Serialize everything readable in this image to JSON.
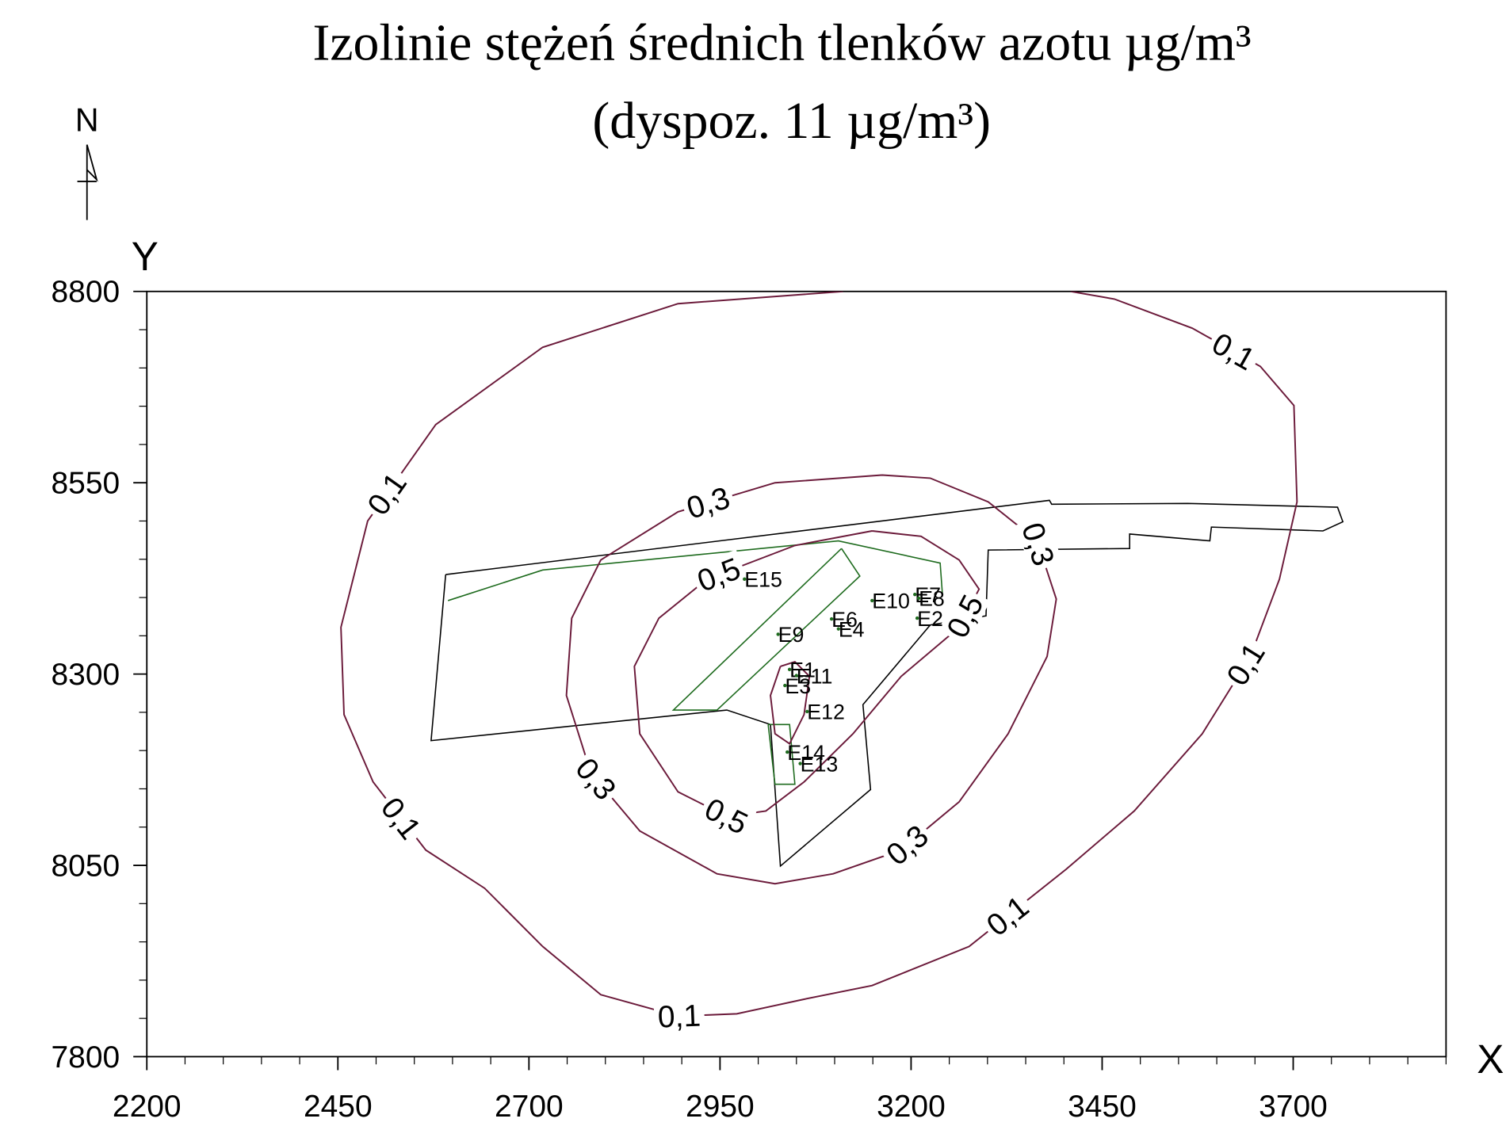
{
  "chart_data": {
    "type": "contour",
    "title": "Izolinie stężeń średnich tlenków azotu µg/m³",
    "subtitle": "(dyspoz. 11 µg/m³)",
    "xlabel": "X",
    "ylabel": "Y",
    "north": "N",
    "xlim": [
      2200,
      3900
    ],
    "ylim": [
      7800,
      8800
    ],
    "xticks": [
      2200,
      2450,
      2700,
      2950,
      3200,
      3450,
      3700
    ],
    "yticks": [
      7800,
      8050,
      8300,
      8550,
      8800
    ],
    "xminorticks": [
      2250,
      2300,
      2350,
      2400,
      2500,
      2550,
      2600,
      2650,
      2750,
      2800,
      2850,
      2900,
      3000,
      3050,
      3100,
      3150,
      3250,
      3300,
      3350,
      3400,
      3500,
      3550,
      3600,
      3650,
      3750,
      3800,
      3850,
      3900
    ],
    "yminorticks": [
      7850,
      7900,
      7950,
      8000,
      8100,
      8150,
      8200,
      8250,
      8350,
      8400,
      8450,
      8500,
      8600,
      8650,
      8700,
      8750
    ],
    "contours": [
      {
        "level": {
          "value": 0.1,
          "label": "0,1"
        },
        "color": "#6b1a3a",
        "x": [
          3111,
          2895,
          2718,
          2578,
          2489,
          2454,
          2458,
          2496,
          2565,
          2642,
          2718,
          2794,
          2895,
          2972,
          3060,
          3149,
          3276,
          3403,
          3492,
          3581,
          3644,
          3682,
          3705,
          3701,
          3657,
          3568,
          3466,
          3409
        ],
        "y": [
          8800,
          8784,
          8727,
          8626,
          8500,
          8361,
          8247,
          8159,
          8070,
          8020,
          7944,
          7881,
          7853,
          7856,
          7875,
          7893,
          7944,
          8045,
          8121,
          8222,
          8323,
          8424,
          8525,
          8651,
          8702,
          8752,
          8790,
          8800
        ]
      },
      {
        "level": {
          "value": 0.3,
          "label": "0,3"
        },
        "color": "#6b1a3a",
        "x": [
          3162,
          3022,
          2895,
          2794,
          2756,
          2749,
          2781,
          2845,
          2946,
          3022,
          3098,
          3187,
          3263,
          3327,
          3378,
          3390,
          3365,
          3301,
          3225,
          3162
        ],
        "y": [
          8560,
          8550,
          8512,
          8449,
          8373,
          8272,
          8171,
          8095,
          8039,
          8026,
          8039,
          8070,
          8133,
          8222,
          8323,
          8398,
          8474,
          8525,
          8556,
          8560
        ]
      },
      {
        "level": {
          "value": 0.5,
          "label": "0,5"
        },
        "color": "#6b1a3a",
        "x": [
          3149,
          3048,
          2933,
          2870,
          2838,
          2845,
          2895,
          2959,
          3010,
          3060,
          3124,
          3187,
          3263,
          3289,
          3263,
          3213,
          3149
        ],
        "y": [
          8487,
          8468,
          8424,
          8373,
          8310,
          8222,
          8146,
          8114,
          8121,
          8159,
          8222,
          8297,
          8361,
          8411,
          8449,
          8480,
          8487
        ]
      },
      {
        "color": "#6b1a3a",
        "x": [
          3029,
          3016,
          3022,
          3041,
          3060,
          3067,
          3048,
          3029
        ],
        "y": [
          8310,
          8272,
          8222,
          8209,
          8247,
          8297,
          8316,
          8310
        ]
      }
    ],
    "outlines": [
      {
        "color": "#000000",
        "x": [
          2591,
          3381,
          3384,
          3562,
          3758,
          3765,
          3739,
          3593,
          3591,
          3486,
          3486,
          3301,
          3298,
          3225,
          3137,
          3147,
          3029,
          3016,
          2959,
          2572,
          2591
        ],
        "y": [
          8430,
          8527,
          8522,
          8523,
          8518,
          8499,
          8487,
          8492,
          8474,
          8483,
          8464,
          8462,
          8376,
          8364,
          8260,
          8149,
          8049,
          8234,
          8253,
          8213,
          8430
        ]
      },
      {
        "color": "#1e6b1e",
        "x": [
          2594,
          2718,
          3105,
          3238,
          3241
        ],
        "y": [
          8396,
          8436,
          8474,
          8445,
          8405
        ]
      },
      {
        "color": "#1e6b1e",
        "x": [
          3109,
          3133,
          2946,
          2889,
          3109
        ],
        "y": [
          8464,
          8428,
          8253,
          8253,
          8464
        ]
      },
      {
        "color": "#1e6b1e",
        "x": [
          3013,
          3041,
          3048,
          3022,
          3013
        ],
        "y": [
          8234,
          8234,
          8156,
          8156,
          8234
        ]
      }
    ],
    "sources": [
      {
        "name": "E15",
        "x": 2982,
        "y": 8424
      },
      {
        "name": "E9",
        "x": 3026,
        "y": 8352
      },
      {
        "name": "E10",
        "x": 3149,
        "y": 8396
      },
      {
        "name": "E7",
        "x": 3205,
        "y": 8404
      },
      {
        "name": "E8",
        "x": 3210,
        "y": 8399
      },
      {
        "name": "E2",
        "x": 3208,
        "y": 8373
      },
      {
        "name": "E6",
        "x": 3096,
        "y": 8372
      },
      {
        "name": "E4",
        "x": 3105,
        "y": 8359
      },
      {
        "name": "E1",
        "x": 3041,
        "y": 8306
      },
      {
        "name": "E11",
        "x": 3050,
        "y": 8298
      },
      {
        "name": "E3",
        "x": 3035,
        "y": 8285
      },
      {
        "name": "E12",
        "x": 3064,
        "y": 8251
      },
      {
        "name": "E14",
        "x": 3038,
        "y": 8198
      },
      {
        "name": "E13",
        "x": 3055,
        "y": 8183
      }
    ],
    "source_color": "#1e6b1e"
  }
}
